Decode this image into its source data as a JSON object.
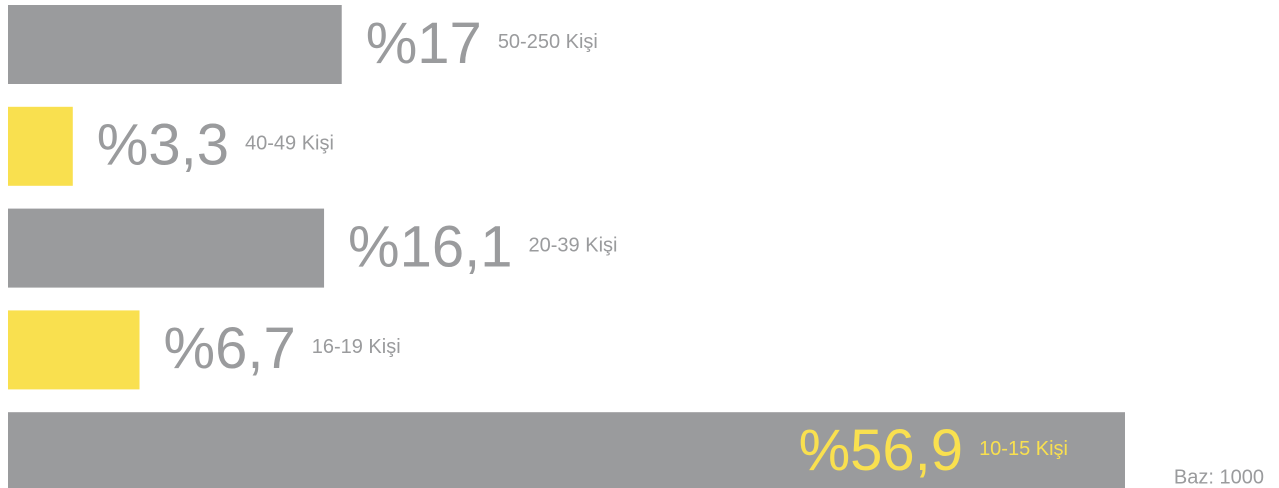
{
  "chart_data": {
    "type": "bar",
    "orientation": "horizontal",
    "categories": [
      "50-250 Kişi",
      "40-49 Kişi",
      "20-39 Kişi",
      "16-19 Kişi",
      "10-15 Kişi"
    ],
    "values": [
      17,
      3.3,
      16.1,
      6.7,
      56.9
    ],
    "value_labels": [
      "%17",
      "%3,3",
      "%16,1",
      "%6,7",
      "%56,9"
    ],
    "colors": [
      "#9a9b9d",
      "#f9e04f",
      "#9a9b9d",
      "#f9e04f",
      "#9a9b9d"
    ],
    "label_colors": [
      "#9a9b9d",
      "#9a9b9d",
      "#9a9b9d",
      "#9a9b9d",
      "#f9e04f"
    ],
    "annotation": "Baz: 1000"
  }
}
